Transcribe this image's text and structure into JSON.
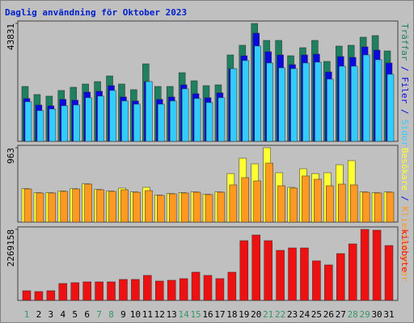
{
  "title": "Daglig användning för Oktober 2023",
  "legend_separator": " / ",
  "chart_data": [
    {
      "type": "bar",
      "ylim": [
        0,
        43831
      ],
      "yticks": [
        43831
      ],
      "series": [
        {
          "name": "Träffar",
          "color": "#1f8060",
          "values": [
            20414,
            17412,
            16811,
            18913,
            20113,
            21314,
            22215,
            24316,
            21314,
            19213,
            28819,
            20414,
            20414,
            25517,
            22515,
            20714,
            21014,
            32121,
            35724,
            43831,
            37525,
            37525,
            31821,
            34823,
            37525,
            29720,
            35424,
            35724,
            38726,
            39326,
            33623
          ]
        },
        {
          "name": "Filer",
          "color": "#0a0ae0",
          "values": [
            15911,
            13509,
            13209,
            15610,
            15310,
            18312,
            18612,
            20714,
            16511,
            15010,
            22215,
            15610,
            16511,
            21014,
            17712,
            16211,
            18012,
            27018,
            31821,
            40227,
            33322,
            32121,
            28519,
            32121,
            32421,
            25817,
            31521,
            31221,
            35123,
            33923,
            29120
          ]
        },
        {
          "name": "Sidor",
          "color": "#33ccff",
          "values": [
            14710,
            11408,
            12008,
            13209,
            13509,
            16211,
            16811,
            18913,
            15010,
            13809,
            22215,
            13809,
            15010,
            19513,
            15911,
            14410,
            16211,
            27018,
            30021,
            35424,
            29120,
            27318,
            27018,
            29120,
            29420,
            23116,
            27919,
            27919,
            32121,
            30321,
            24917
          ]
        }
      ]
    },
    {
      "type": "bar",
      "ylim": [
        0,
        963
      ],
      "yticks": [
        963
      ],
      "series": [
        {
          "name": "Besökare",
          "color": "#ffff33",
          "values": [
            435,
            382,
            382,
            403,
            434,
            497,
            424,
            403,
            440,
            392,
            450,
            351,
            371,
            382,
            392,
            361,
            392,
            628,
            827,
            754,
            963,
            639,
            450,
            691,
            628,
            639,
            743,
            796,
            392,
            382,
            392
          ]
        },
        {
          "name": "Klientadresser",
          "color": "#ff9922",
          "values": [
            429,
            377,
            377,
            398,
            429,
            492,
            419,
            398,
            419,
            387,
            408,
            346,
            366,
            377,
            387,
            356,
            387,
            482,
            576,
            534,
            764,
            471,
            440,
            597,
            555,
            471,
            492,
            482,
            387,
            377,
            387
          ]
        }
      ]
    },
    {
      "type": "bar",
      "ylim": [
        0,
        2269158
      ],
      "yticks": [
        2269158
      ],
      "categories": [
        "1",
        "2",
        "3",
        "4",
        "5",
        "6",
        "7",
        "8",
        "9",
        "10",
        "11",
        "12",
        "13",
        "14",
        "15",
        "16",
        "17",
        "18",
        "19",
        "20",
        "21",
        "22",
        "23",
        "24",
        "25",
        "26",
        "27",
        "28",
        "29",
        "30",
        "31"
      ],
      "category_colors": [
        "#339966",
        "#000000",
        "#000000",
        "#000000",
        "#000000",
        "#000000",
        "#339966",
        "#339966",
        "#000000",
        "#000000",
        "#000000",
        "#000000",
        "#000000",
        "#339966",
        "#339966",
        "#000000",
        "#000000",
        "#000000",
        "#000000",
        "#000000",
        "#339966",
        "#339966",
        "#000000",
        "#000000",
        "#000000",
        "#000000",
        "#000000",
        "#339966",
        "#339966",
        "#000000",
        "#000000"
      ],
      "series": [
        {
          "name": "kilobyte",
          "color": "#ee1111",
          "values": [
            309432,
            283646,
            309432,
            541506,
            567292,
            593078,
            593078,
            593078,
            670436,
            670436,
            799366,
            618864,
            644650,
            696222,
            902510,
            799366,
            696222,
            902510,
            1908164,
            2088666,
            1908164,
            1598732,
            1676090,
            1676090,
            1263514,
            1134584,
            1495588,
            1805020,
            2269158,
            2243382,
            1753448
          ]
        }
      ]
    }
  ]
}
